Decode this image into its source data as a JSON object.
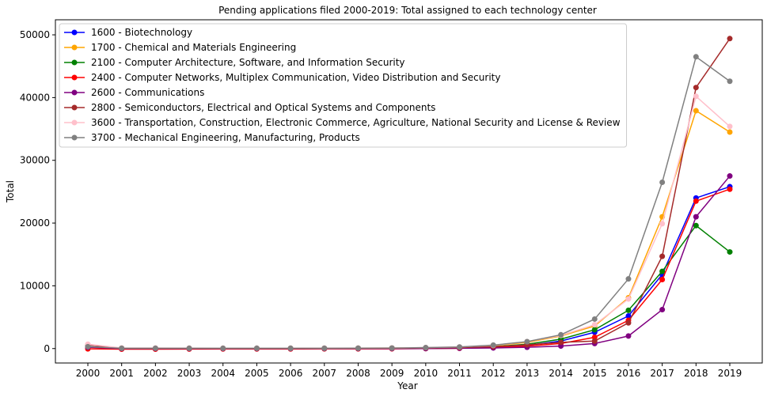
{
  "chart_data": {
    "type": "line",
    "title": "Pending applications filed 2000-2019: Total assigned to each technology center",
    "xlabel": "Year",
    "ylabel": "Total",
    "categories": [
      "2000",
      "2001",
      "2002",
      "2003",
      "2004",
      "2005",
      "2006",
      "2007",
      "2008",
      "2009",
      "2010",
      "2011",
      "2012",
      "2013",
      "2014",
      "2015",
      "2016",
      "2017",
      "2018",
      "2019"
    ],
    "ylim": [
      -2300,
      52400
    ],
    "yticks": [
      0,
      10000,
      20000,
      30000,
      40000,
      50000
    ],
    "ytick_labels": [
      "0",
      "10000",
      "20000",
      "30000",
      "40000",
      "50000"
    ],
    "grid": false,
    "legend_position": "upper-left",
    "series": [
      {
        "name": "1600 - Biotechnology",
        "color": "#0000ff",
        "values": [
          300,
          50,
          50,
          30,
          30,
          40,
          40,
          50,
          50,
          70,
          100,
          150,
          250,
          500,
          1200,
          2600,
          5200,
          11800,
          24000,
          25800
        ]
      },
      {
        "name": "1700 - Chemical and Materials Engineering",
        "color": "#ffa500",
        "values": [
          200,
          60,
          50,
          40,
          40,
          40,
          50,
          50,
          60,
          80,
          120,
          200,
          450,
          1000,
          2000,
          3600,
          8100,
          21000,
          37900,
          34500
        ]
      },
      {
        "name": "2100 - Computer Architecture, Software, and Information Security",
        "color": "#008000",
        "values": [
          300,
          50,
          40,
          30,
          30,
          40,
          40,
          50,
          50,
          60,
          100,
          150,
          300,
          700,
          1500,
          3000,
          6100,
          12300,
          19600,
          15400
        ]
      },
      {
        "name": "2400 - Computer Networks, Multiplex Communication, Video Distribution and Security",
        "color": "#ff0000",
        "values": [
          -50,
          -100,
          -100,
          -80,
          -70,
          -60,
          -60,
          -50,
          -50,
          -40,
          0,
          50,
          150,
          400,
          800,
          1800,
          4500,
          11000,
          23500,
          25400
        ]
      },
      {
        "name": "2600 - Communications",
        "color": "#800080",
        "values": [
          200,
          0,
          0,
          0,
          0,
          0,
          0,
          0,
          0,
          0,
          0,
          50,
          100,
          200,
          400,
          800,
          2000,
          6200,
          21000,
          27500
        ]
      },
      {
        "name": "2800 - Semiconductors, Electrical and Optical Systems and Components",
        "color": "#a52a2a",
        "values": [
          600,
          50,
          50,
          40,
          40,
          40,
          40,
          50,
          50,
          60,
          100,
          150,
          300,
          600,
          1000,
          1200,
          4100,
          14700,
          41600,
          49400
        ]
      },
      {
        "name": "3600 - Transportation, Construction, Electronic Commerce, Agriculture, National Security and License & Review",
        "color": "#ffc0cb",
        "values": [
          700,
          100,
          100,
          80,
          70,
          70,
          70,
          80,
          80,
          100,
          150,
          250,
          500,
          1100,
          2100,
          3800,
          7900,
          19900,
          40200,
          35400
        ]
      },
      {
        "name": "3700 - Mechanical Engineering, Manufacturing, Products",
        "color": "#808080",
        "values": [
          300,
          50,
          50,
          40,
          40,
          40,
          50,
          50,
          60,
          80,
          150,
          250,
          550,
          1100,
          2200,
          4700,
          11100,
          26500,
          46500,
          42600
        ]
      }
    ]
  }
}
